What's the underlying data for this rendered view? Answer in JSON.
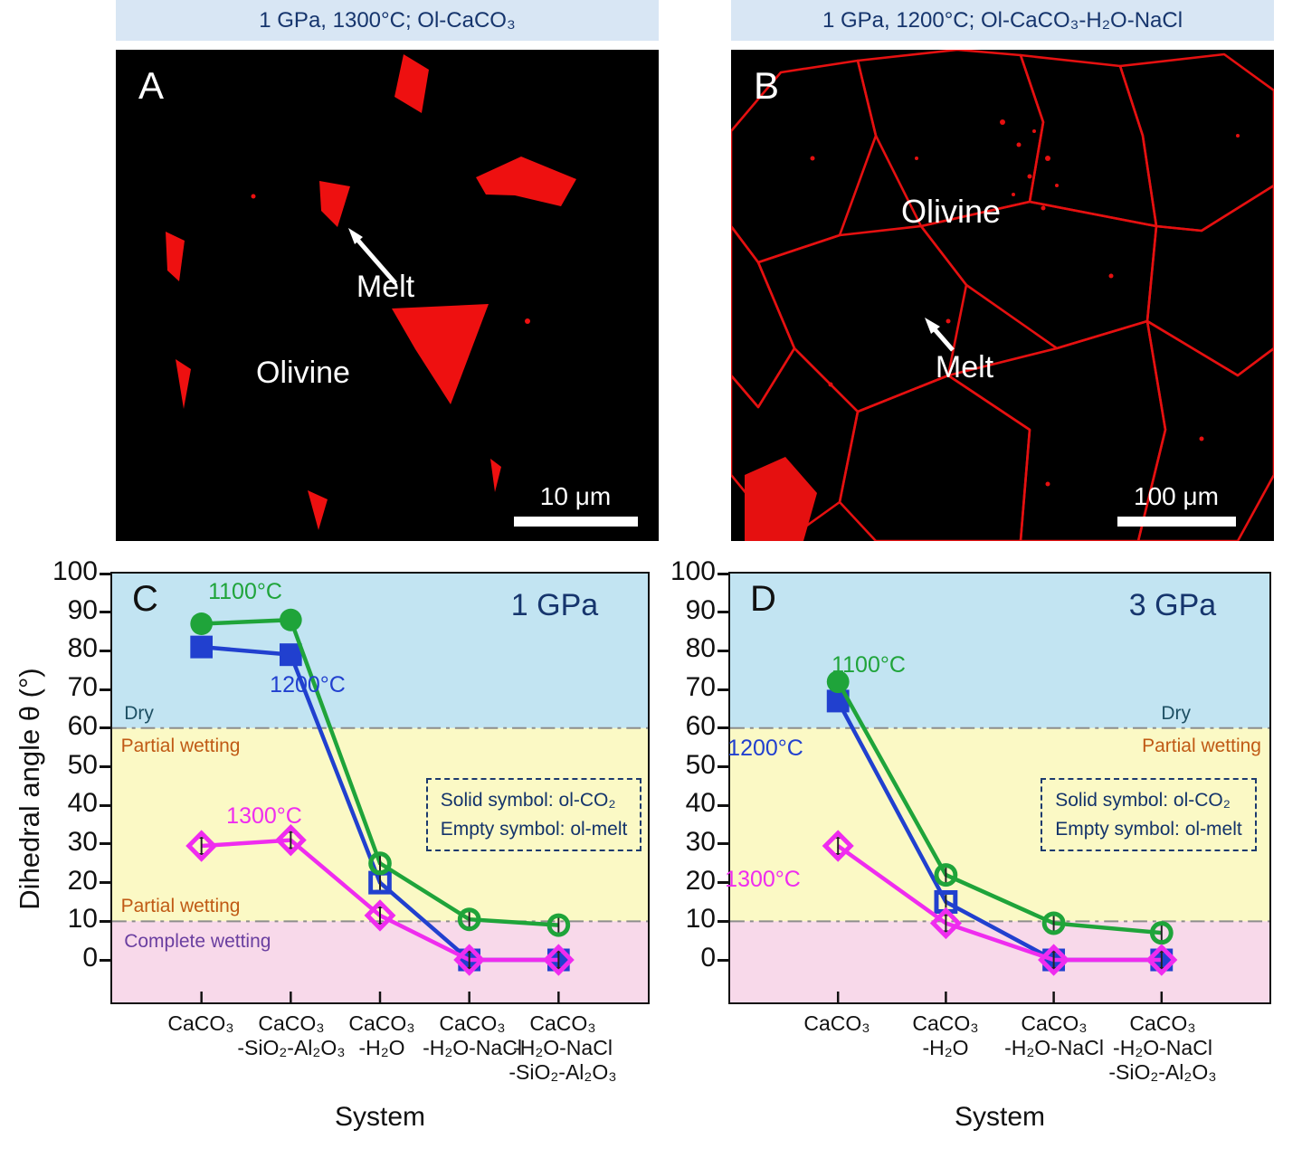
{
  "panels": {
    "a": {
      "header": "1 GPa, 1300°C; Ol-CaCO₃",
      "letter": "A",
      "melt_label": "Melt",
      "mineral_label": "Olivine",
      "scale_label": "10 μm"
    },
    "b": {
      "header": "1 GPa, 1200°C; Ol-CaCO₃-H₂O-NaCl",
      "letter": "B",
      "melt_label": "Melt",
      "mineral_label": "Olivine",
      "scale_label": "100 μm"
    }
  },
  "axes": {
    "y_label": "Dihedral angle θ (°)",
    "x_label": "System"
  },
  "colors": {
    "header_bg": "#d8e6f4",
    "header_text": "#16356d",
    "micrograph_bg": "#000000",
    "melt_red": "#ee1010",
    "zone_dry": "#c2e4f2",
    "zone_partial": "#fbf9c5",
    "zone_complete": "#f8d9ea",
    "series_1100": "#1fa43a",
    "series_1200": "#2140cf",
    "series_1300": "#ef2cef",
    "dry_text": "#1d4f63",
    "partial_text": "#c05a15",
    "complete_text": "#6a3fa0",
    "navy_text": "#16356d",
    "boundary_line": "#8d8d8d"
  },
  "chart_data": [
    {
      "id": "C",
      "type": "line",
      "panel_letter": "C",
      "pressure": "1 GPa",
      "ylim": [
        -11,
        100
      ],
      "y_ticks": [
        0,
        10,
        20,
        30,
        40,
        50,
        60,
        70,
        80,
        90,
        100
      ],
      "boundaries": [
        60,
        10
      ],
      "zones": [
        {
          "label": "Dry",
          "from": 60,
          "to": 100,
          "color": "#c2e4f2"
        },
        {
          "label": "Partial wetting",
          "from": 10,
          "to": 60,
          "color": "#fbf9c5"
        },
        {
          "label": "Complete wetting",
          "from": -11,
          "to": 10,
          "color": "#f8d9ea"
        }
      ],
      "categories": [
        [
          "CaCO₃"
        ],
        [
          "CaCO₃",
          "-SiO₂-Al₂O₃"
        ],
        [
          "CaCO₃",
          "-H₂O"
        ],
        [
          "CaCO₃",
          "-H₂O-NaCl"
        ],
        [
          "CaCO₃",
          "-H₂O-NaCl",
          "-SiO₂-Al₂O₃"
        ]
      ],
      "series": [
        {
          "name": "1200°C",
          "color": "#2140cf",
          "marker": "square",
          "values": [
            81,
            79,
            20,
            0,
            0
          ],
          "filled": [
            true,
            true,
            false,
            true,
            true
          ],
          "label_fx": 0.36,
          "label_val": 71
        },
        {
          "name": "1100°C",
          "color": "#1fa43a",
          "marker": "circle",
          "values": [
            87,
            88,
            25,
            10.5,
            9
          ],
          "filled": [
            true,
            true,
            false,
            false,
            false
          ],
          "label_fx": 0.245,
          "label_val": 95
        },
        {
          "name": "1300°C",
          "color": "#ef2cef",
          "marker": "diamond",
          "values": [
            29.5,
            31,
            11.5,
            0,
            0
          ],
          "filled": [
            false,
            false,
            false,
            false,
            false
          ],
          "label_fx": 0.28,
          "label_val": 37
        }
      ],
      "zone_labels": [
        {
          "text": "Dry",
          "color": "#1d4f63",
          "fx": 0.022,
          "val": 63.5,
          "align": "left"
        },
        {
          "text": "Partial wetting",
          "color": "#c05a15",
          "fx": 0.016,
          "val": 55,
          "align": "left"
        },
        {
          "text": "Partial wetting",
          "color": "#c05a15",
          "fx": 0.016,
          "val": 13.5,
          "align": "left"
        },
        {
          "text": "Complete wetting",
          "color": "#6a3fa0",
          "fx": 0.022,
          "val": 4.5,
          "align": "left"
        }
      ],
      "legend": {
        "fx": 0.578,
        "val": 47,
        "lines": [
          "Solid symbol: ol-CO₂",
          "Empty symbol: ol-melt"
        ]
      }
    },
    {
      "id": "D",
      "type": "line",
      "panel_letter": "D",
      "pressure": "3 GPa",
      "ylim": [
        -11,
        100
      ],
      "y_ticks": [
        0,
        10,
        20,
        30,
        40,
        50,
        60,
        70,
        80,
        90,
        100
      ],
      "boundaries": [
        60,
        10
      ],
      "zones": [
        {
          "label": "Dry",
          "from": 60,
          "to": 100,
          "color": "#c2e4f2"
        },
        {
          "label": "Partial wetting",
          "from": 10,
          "to": 60,
          "color": "#fbf9c5"
        },
        {
          "label": "Complete wetting",
          "from": -11,
          "to": 10,
          "color": "#f8d9ea"
        }
      ],
      "categories": [
        [
          "CaCO₃"
        ],
        [
          "CaCO₃",
          "-H₂O"
        ],
        [
          "CaCO₃",
          "-H₂O-NaCl"
        ],
        [
          "CaCO₃",
          "-H₂O-NaCl",
          "-SiO₂-Al₂O₃"
        ]
      ],
      "series": [
        {
          "name": "1200°C",
          "color": "#2140cf",
          "marker": "square",
          "values": [
            67,
            15,
            0,
            0
          ],
          "filled": [
            true,
            false,
            true,
            true
          ],
          "label_fx": 0.065,
          "label_val": 54.5
        },
        {
          "name": "1100°C",
          "color": "#1fa43a",
          "marker": "circle",
          "values": [
            72,
            22,
            9.5,
            7
          ],
          "filled": [
            true,
            false,
            false,
            false
          ],
          "label_fx": 0.255,
          "label_val": 76
        },
        {
          "name": "1300°C",
          "color": "#ef2cef",
          "marker": "diamond",
          "values": [
            29.5,
            9.5,
            0,
            0
          ],
          "filled": [
            false,
            false,
            false,
            false
          ],
          "label_fx": 0.06,
          "label_val": 20.5
        }
      ],
      "zone_labels": [
        {
          "text": "Dry",
          "color": "#1d4f63",
          "fx": 0.855,
          "val": 63.5,
          "align": "right"
        },
        {
          "text": "Partial wetting",
          "color": "#c05a15",
          "fx": 0.985,
          "val": 55,
          "align": "right"
        }
      ],
      "legend": {
        "fx": 0.572,
        "val": 47,
        "lines": [
          "Solid symbol: ol-CO₂",
          "Empty symbol: ol-melt"
        ]
      }
    }
  ]
}
